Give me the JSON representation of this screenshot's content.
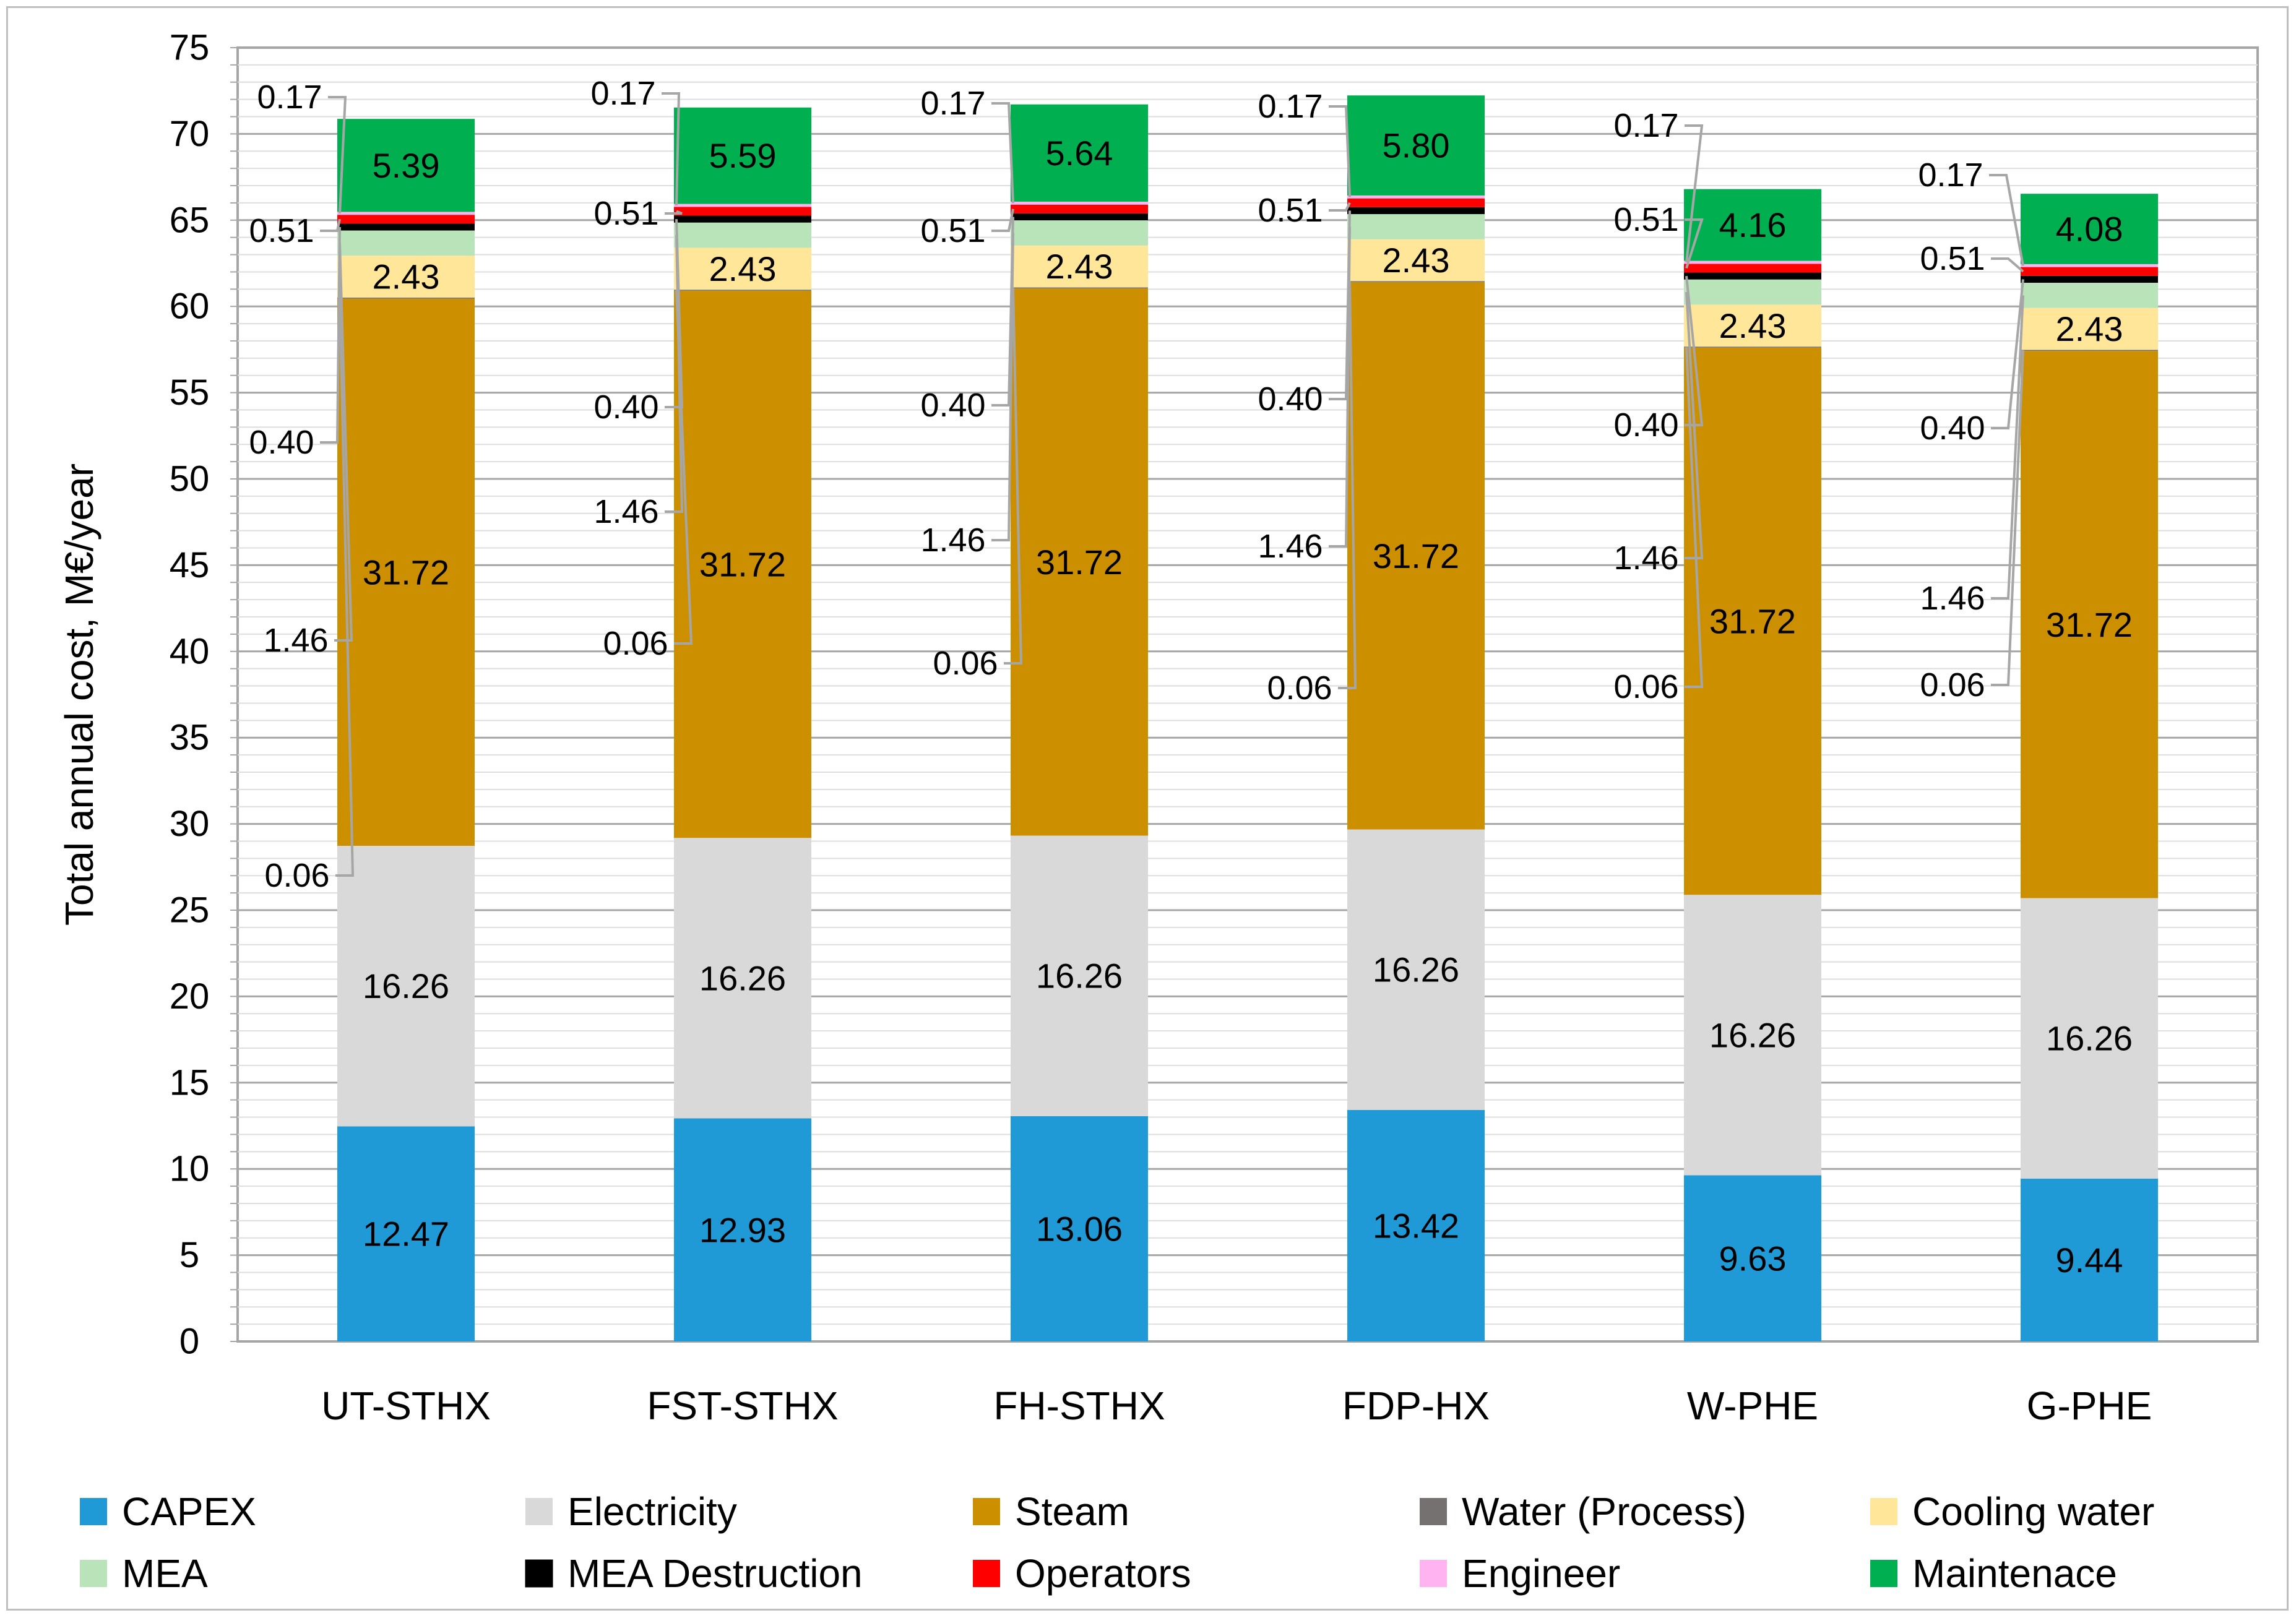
{
  "chart_data": {
    "type": "bar",
    "stacked": true,
    "title": "",
    "xlabel": "",
    "ylabel": "Total annual cost, M€/year",
    "ylim": [
      0,
      75
    ],
    "yticks": [
      0,
      5,
      10,
      15,
      20,
      25,
      30,
      35,
      40,
      45,
      50,
      55,
      60,
      65,
      70,
      75
    ],
    "grid": true,
    "legend_position": "bottom",
    "categories": [
      "UT-STHX",
      "FST-STHX",
      "FH-STHX",
      "FDP-HX",
      "W-PHE",
      "G-PHE"
    ],
    "series": [
      {
        "name": "CAPEX",
        "color": "#1f9ad6",
        "values": [
          12.47,
          12.93,
          13.06,
          13.42,
          9.63,
          9.44
        ]
      },
      {
        "name": "Electricity",
        "color": "#d9d9d9",
        "values": [
          16.26,
          16.26,
          16.26,
          16.26,
          16.26,
          16.26
        ]
      },
      {
        "name": "Steam",
        "color": "#cc8f00",
        "values": [
          31.72,
          31.72,
          31.72,
          31.72,
          31.72,
          31.72
        ]
      },
      {
        "name": "Water (Process)",
        "color": "#767171",
        "values": [
          0.06,
          0.06,
          0.06,
          0.06,
          0.06,
          0.06
        ]
      },
      {
        "name": "Cooling water",
        "color": "#ffe699",
        "values": [
          2.43,
          2.43,
          2.43,
          2.43,
          2.43,
          2.43
        ]
      },
      {
        "name": "MEA",
        "color": "#b9e3b9",
        "values": [
          1.46,
          1.46,
          1.46,
          1.46,
          1.46,
          1.46
        ]
      },
      {
        "name": "MEA Destruction",
        "color": "#000000",
        "values": [
          0.4,
          0.4,
          0.4,
          0.4,
          0.4,
          0.4
        ]
      },
      {
        "name": "Operators",
        "color": "#ff0000",
        "values": [
          0.51,
          0.51,
          0.51,
          0.51,
          0.51,
          0.51
        ]
      },
      {
        "name": "Engineer",
        "color": "#ffb3f0",
        "values": [
          0.17,
          0.17,
          0.17,
          0.17,
          0.17,
          0.17
        ]
      },
      {
        "name": "Maintenace",
        "color": "#00b050",
        "values": [
          5.39,
          5.59,
          5.64,
          5.8,
          4.16,
          4.08
        ]
      }
    ],
    "data_labels": {
      "inside": [
        "12.47",
        "12.93",
        "13.06",
        "13.42",
        "9.63",
        "9.44",
        "16.26",
        "31.72",
        "2.43",
        "5.39",
        "5.59",
        "5.64",
        "5.80",
        "4.16",
        "4.08"
      ],
      "callouts": [
        "0.17",
        "0.51",
        "0.40",
        "1.46",
        "0.06"
      ]
    }
  }
}
